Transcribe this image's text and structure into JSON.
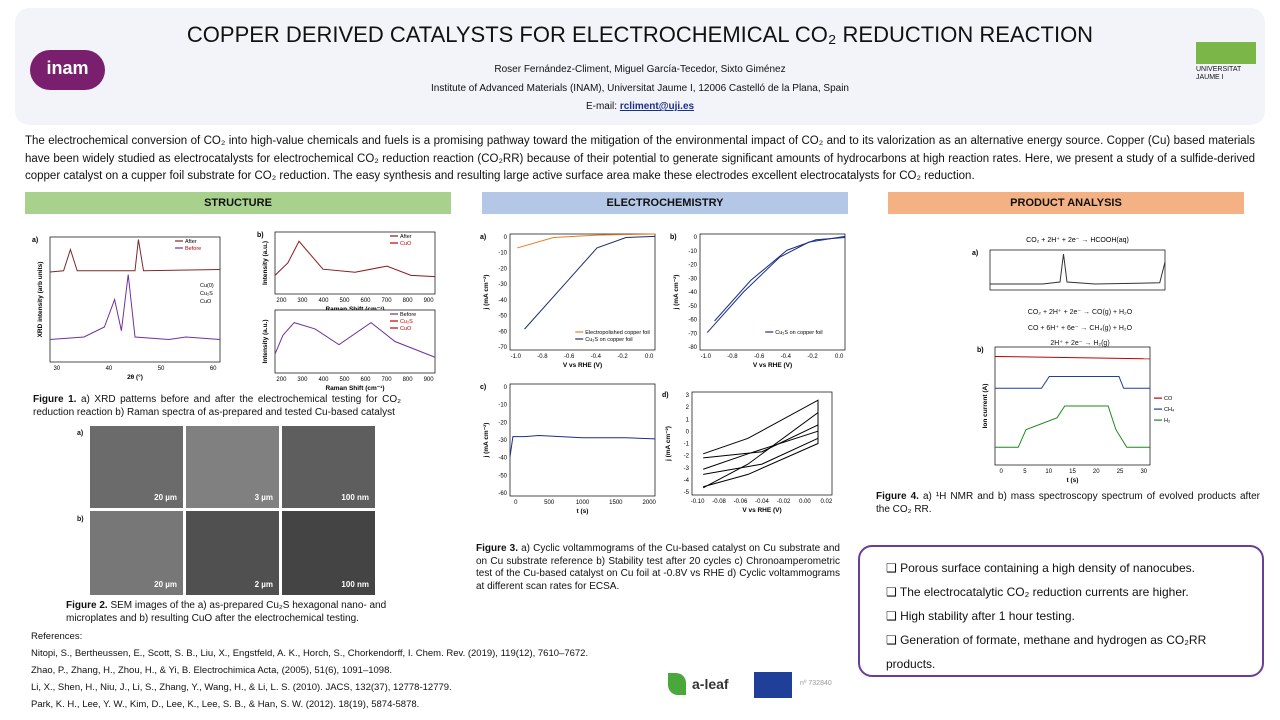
{
  "header": {
    "title": "COPPER DERIVED CATALYSTS FOR ELECTROCHEMICAL CO₂ REDUCTION REACTION",
    "authors": "Roser Fernández-Climent,  Miguel García-Tecedor,  Sixto Giménez",
    "affiliation": "Institute of Advanced Materials (INAM), Universitat Jaume I, 12006 Castelló de la Plana,  Spain",
    "email_label": "E-mail:",
    "email": "rcliment@uji.es",
    "logo_left": "inam",
    "logo_right": "UNIVERSITAT JAUME I"
  },
  "abstract": "The electrochemical conversion of CO₂ into high-value chemicals and fuels is a promising pathway toward the mitigation of the environmental impact of CO₂ and to its valorization as an alternative energy source. Copper (Cu) based materials have been widely studied as electrocatalysts for electrochemical CO₂ reduction reaction (CO₂RR) because of their potential to generate significant amounts of hydrocarbons at high reaction rates. Here, we present a study of a sulfide-derived copper catalyst on a cupper foil substrate for CO₂ reduction. The easy synthesis and resulting large active surface area make these electrodes excellent electrocatalysts for CO₂ reduction.",
  "sections": [
    "STRUCTURE",
    "ELECTROCHEMISTRY",
    "PRODUCT ANALYSIS"
  ],
  "panels": [
    {
      "panel": "a)",
      "ylabel": "XRD intensity (arb units)",
      "xlabel": "2θ (°)",
      "xticks": [
        "30",
        "40",
        "50",
        "60"
      ],
      "yticks": [],
      "legend": [
        "After",
        "Before"
      ],
      "markers": [
        "Cu(0)",
        "Cu₂S",
        "CuO"
      ]
    },
    {
      "panel": "b)",
      "ylabel": "Intensity (a.u.)",
      "xlabel": "Raman Shift (cm⁻¹)",
      "xticks": [
        "200",
        "300",
        "400",
        "500",
        "600",
        "700",
        "800",
        "900"
      ],
      "yticks": [],
      "legend": [
        "After",
        "CuO"
      ]
    },
    {
      "ylabel": "Intensity (a.u.)",
      "xlabel": "Raman Shift (cm⁻¹)",
      "xticks": [
        "200",
        "300",
        "400",
        "500",
        "600",
        "700",
        "800",
        "900"
      ],
      "yticks": [],
      "legend": [
        "Before",
        "Cu₂S",
        "CuO"
      ]
    },
    {
      "panel": "a)",
      "ylabel": "j (mA cm⁻²)",
      "xlabel": "V vs RHE (V)",
      "xticks": [
        "-1.0",
        "-0.8",
        "-0.6",
        "-0.4",
        "-0.2",
        "0.0"
      ],
      "yticks": [
        "0",
        "-10",
        "-20",
        "-30",
        "-40",
        "-50",
        "-60",
        "-70"
      ],
      "legend": [
        "Electropolished copper foil",
        "Cu₂S on copper foil"
      ]
    },
    {
      "panel": "b)",
      "ylabel": "j (mA cm⁻²)",
      "xlabel": "V vs RHE (V)",
      "xticks": [
        "-1.0",
        "-0.8",
        "-0.6",
        "-0.4",
        "-0.2",
        "0.0"
      ],
      "yticks": [
        "0",
        "-10",
        "-20",
        "-30",
        "-40",
        "-50",
        "-60",
        "-70",
        "-80"
      ],
      "legend": [
        "Cu₂S on copper foil"
      ]
    },
    {
      "panel": "c)",
      "ylabel": "j (mA cm⁻²)",
      "xlabel": "t (s)",
      "xticks": [
        "0",
        "500",
        "1000",
        "1500",
        "2000"
      ],
      "yticks": [
        "0",
        "-10",
        "-20",
        "-30",
        "-40",
        "-50",
        "-60"
      ]
    },
    {
      "panel": "d)",
      "ylabel": "j (mA cm⁻²)",
      "xlabel": "V vs RHE (V)",
      "xticks": [
        "-0.10",
        "-0.08",
        "-0.06",
        "-0.04",
        "-0.02",
        "0.00",
        "0.02"
      ],
      "yticks": [
        "3",
        "2",
        "1",
        "0",
        "-1",
        "-2",
        "-3",
        "-4",
        "-5"
      ]
    },
    {
      "panel": "a)",
      "equation": "CO₂ + 2H⁺ + 2e⁻  → HCOOH(aq)",
      "xticks": [],
      "yticks": []
    },
    {
      "panel": "b)",
      "ylabel": "Ion current (A)",
      "xlabel": "t (s)",
      "xticks": [
        "0",
        "5",
        "10",
        "15",
        "20",
        "25",
        "30"
      ],
      "yticks": [],
      "legend": [
        "CO",
        "CH₄",
        "H₂"
      ]
    }
  ],
  "equations": [
    "CO₂ + 2H⁺ + 2e⁻  → CO(g) + H₂O",
    "CO + 6H⁺ + 6e⁻  → CH₄(g) + H₂O",
    "2H⁺ + 2e⁻  → H₂(g)"
  ],
  "captions": [
    {
      "label": "Figure 1.",
      "text": "a) XRD patterns before and after the electrochemical testing for CO₂ reduction reaction b) Raman  spectra of as-prepared and tested Cu-based catalyst"
    },
    {
      "label": "Figure 2.",
      "text": "SEM images of the a) as-prepared Cu₂S hexagonal nano- and microplates and b) resulting CuO after the electrochemical testing."
    },
    {
      "label": "Figure 3.",
      "text": "a) Cyclic voltammograms of the Cu-based catalyst on Cu substrate and on Cu substrate reference b) Stability test after 20 cycles c) Chronoamperometric test of the Cu-based catalyst on Cu foil at -0.8V vs RHE d) Cyclic voltammograms at different scan rates for ECSA."
    },
    {
      "label": "Figure 4.",
      "text": "a) ¹H NMR and b) mass spectroscopy spectrum of evolved products after the CO₂ RR."
    }
  ],
  "sem": {
    "rows": [
      "a)",
      "b)"
    ],
    "scales": [
      [
        "20 µm",
        "3 µm",
        "100 nm"
      ],
      [
        "20 µm",
        "2 µm",
        "100 nm"
      ]
    ]
  },
  "references": {
    "title": "References:",
    "items": [
      "Nitopi, S., Bertheussen, E., Scott, S. B., Liu, X., Engstfeld, A. K., Horch, S., Chorkendorff, I. Chem. Rev. (2019), 119(12), 7610–7672.",
      "Zhao, P.,  Zhang, H., Zhou, H., & Yi, B. Electrochimica Acta, (2005), 51(6), 1091–1098.",
      "Li, X., Shen, H., Niu, J., Li, S., Zhang, Y., Wang, H., & Li, L. S. (2010).  JACS, 132(37), 12778-12779.",
      "Park, K. H., Lee, Y. W., Kim, D., Lee, K., Lee, S. B., & Han, S. W. (2012). 18(19), 5874-5878."
    ]
  },
  "conclusions": [
    "Porous surface containing a high density of nanocubes.",
    "The electrocatalytic CO₂ reduction currents are higher.",
    "High stability after 1 hour testing.",
    "Generation of formate, methane and hydrogen as CO₂RR products."
  ],
  "footer": {
    "aleaf": "a-leaf",
    "grant": "nº 732840"
  }
}
